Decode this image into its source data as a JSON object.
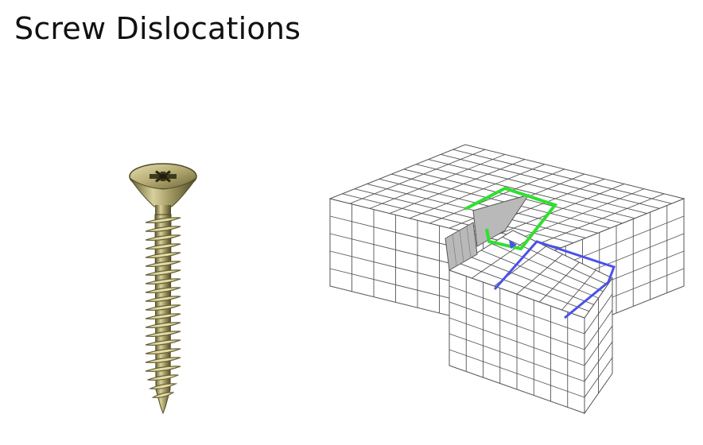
{
  "slide": {
    "title": "Screw Dislocations"
  },
  "screw_image": {
    "icon": "screw-icon",
    "colors": {
      "metal": "#b9b07e",
      "metal_dark": "#6a6336",
      "metal_light": "#e3dcaa"
    }
  },
  "crystal_diagram": {
    "icon": "screw-dislocation-lattice-icon",
    "colors": {
      "grid_line": "#555555",
      "fill": "#ffffff",
      "shaded": "#b9b9b9",
      "burgers_circuit_bottom": "#4a52e8",
      "burgers_circuit_top": "#2fe02f"
    }
  }
}
